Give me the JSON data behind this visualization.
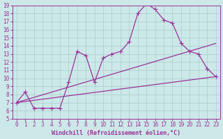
{
  "background_color": "#cce8e8",
  "grid_color": "#aacccc",
  "line_color": "#993399",
  "xlabel": "Windchill (Refroidissement éolien,°C)",
  "xlim": [
    -0.5,
    23.5
  ],
  "ylim": [
    5,
    19
  ],
  "xticks": [
    0,
    1,
    2,
    3,
    4,
    5,
    6,
    7,
    8,
    9,
    10,
    11,
    12,
    13,
    14,
    15,
    16,
    17,
    18,
    19,
    20,
    21,
    22,
    23
  ],
  "yticks": [
    5,
    6,
    7,
    8,
    9,
    10,
    11,
    12,
    13,
    14,
    15,
    16,
    17,
    18,
    19
  ],
  "line1_x": [
    0,
    1,
    2,
    3,
    4,
    5,
    6,
    7,
    8,
    9,
    10,
    11,
    12,
    13,
    14,
    15,
    16,
    17,
    18,
    19,
    20,
    21,
    22,
    23
  ],
  "line1_y": [
    7.0,
    8.3,
    6.3,
    6.3,
    6.3,
    6.3,
    9.5,
    13.3,
    12.8,
    9.5,
    12.5,
    13.0,
    13.3,
    14.5,
    18.0,
    19.2,
    18.5,
    17.2,
    16.8,
    14.3,
    13.3,
    13.0,
    11.2,
    10.2
  ],
  "line2_x": [
    0,
    23
  ],
  "line2_y": [
    7.0,
    14.3
  ],
  "line3_x": [
    0,
    23
  ],
  "line3_y": [
    7.0,
    10.2
  ],
  "marker": "+",
  "markersize": 4,
  "linewidth": 0.9,
  "font_size": 5.5
}
